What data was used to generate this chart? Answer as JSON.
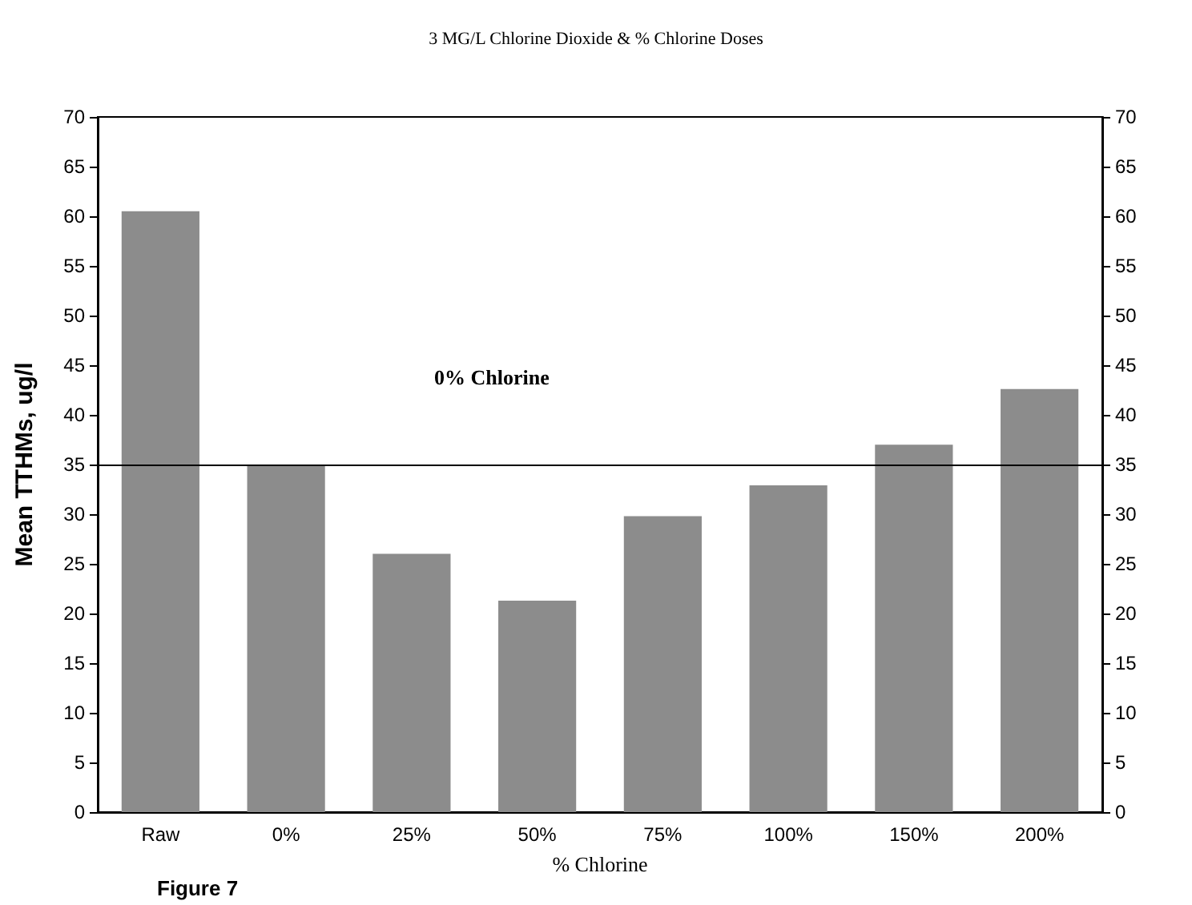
{
  "chart_data": {
    "type": "bar",
    "title": "3 MG/L Chlorine Dioxide & % Chlorine Doses",
    "xlabel": "% Chlorine",
    "ylabel": "Mean TTHMs, ug/l",
    "categories": [
      "Raw",
      "0%",
      "25%",
      "50%",
      "75%",
      "100%",
      "150%",
      "200%"
    ],
    "values": [
      60.5,
      35,
      26,
      21.3,
      29.8,
      32.9,
      37,
      42.6
    ],
    "color": "#8c8c8c",
    "ylim": [
      0,
      70
    ],
    "yticks": [
      0,
      5,
      10,
      15,
      20,
      25,
      30,
      35,
      40,
      45,
      50,
      55,
      60,
      65,
      70
    ],
    "y2lim": [
      0,
      70
    ],
    "y2ticks": [
      0,
      5,
      10,
      15,
      20,
      25,
      30,
      35,
      40,
      45,
      50,
      55,
      60,
      65,
      70
    ],
    "ref_lines": [
      {
        "axis": "y",
        "value": 35,
        "label": "0% Chlorine",
        "color": "#000000"
      }
    ],
    "annotations": [
      "Figure 7"
    ],
    "grid": false
  }
}
